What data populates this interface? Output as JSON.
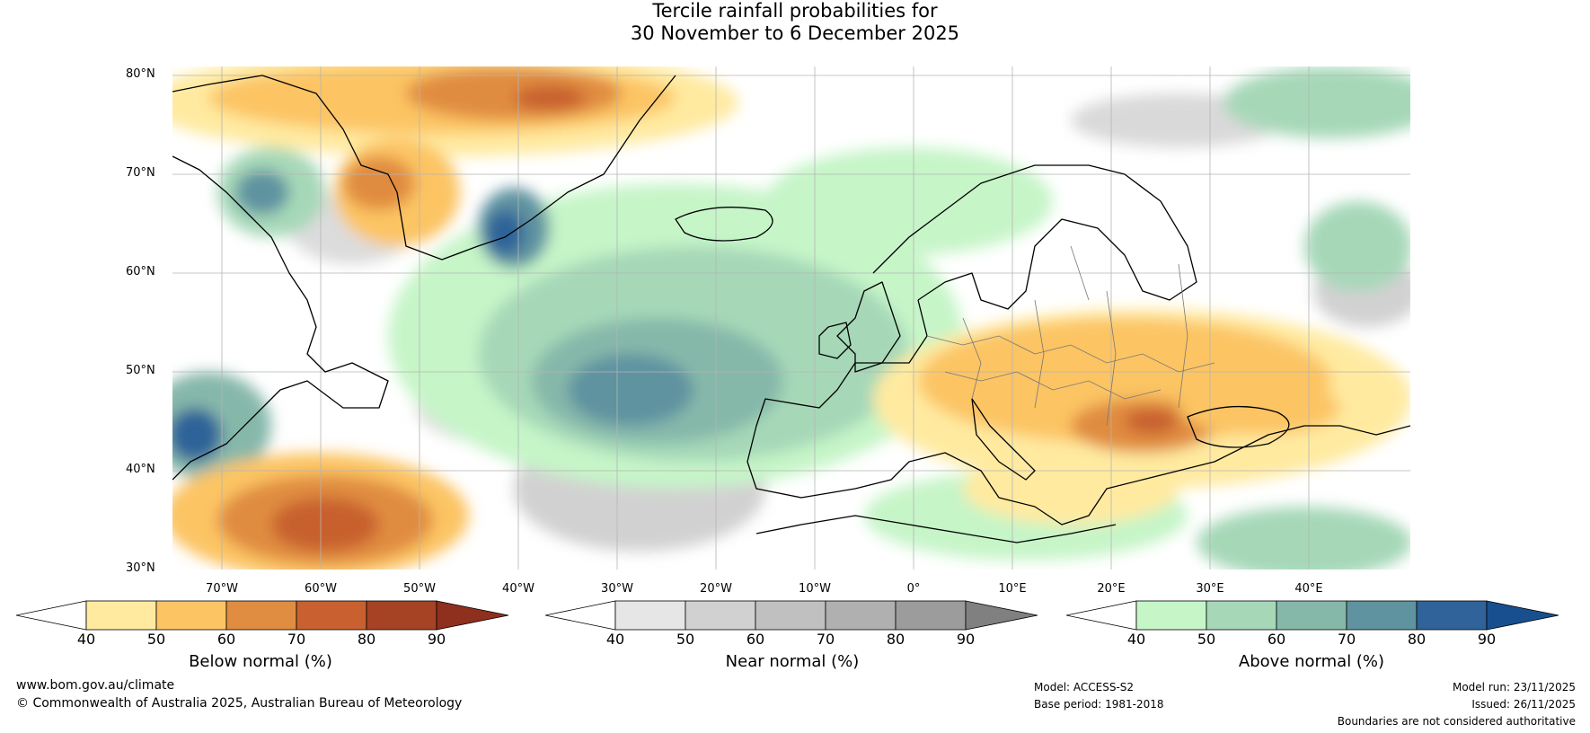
{
  "title": {
    "line1": "Tercile rainfall probabilities for",
    "line2": "30 November to 6 December 2025"
  },
  "map": {
    "lat_labels": [
      "80°N",
      "70°N",
      "60°N",
      "50°N",
      "40°N",
      "30°N"
    ],
    "lon_labels": [
      "70°W",
      "60°W",
      "50°W",
      "40°W",
      "30°W",
      "20°W",
      "10°W",
      "0°",
      "10°E",
      "20°E",
      "30°E",
      "40°E"
    ],
    "extent": {
      "lon_min": -75,
      "lon_max": 50,
      "lat_min": 30,
      "lat_max": 81
    }
  },
  "colorbars": [
    {
      "label": "Below normal (%)",
      "ticks": [
        "40",
        "50",
        "60",
        "70",
        "80",
        "90"
      ],
      "colors": [
        "#ffffff",
        "#ffeaa0",
        "#fcc463",
        "#e08c41",
        "#c8612f",
        "#a64325",
        "#8f2f1e"
      ]
    },
    {
      "label": "Near normal (%)",
      "ticks": [
        "40",
        "50",
        "60",
        "70",
        "80",
        "90"
      ],
      "colors": [
        "#ffffff",
        "#e6e6e6",
        "#d1d1d1",
        "#c0c0c0",
        "#b0b0b0",
        "#9c9c9c",
        "#808080"
      ]
    },
    {
      "label": "Above normal (%)",
      "ticks": [
        "40",
        "50",
        "60",
        "70",
        "80",
        "90"
      ],
      "colors": [
        "#ffffff",
        "#c6f5c8",
        "#a6d8b8",
        "#86b8aa",
        "#5f93a0",
        "#2f6399",
        "#184f8e"
      ]
    }
  ],
  "footer": {
    "website": "www.bom.gov.au/climate",
    "copyright": "© Commonwealth of Australia 2025, Australian Bureau of Meteorology",
    "model": "Model: ACCESS-S2",
    "base_period": "Base period: 1981-2018",
    "model_run": "Model run: 23/11/2025",
    "issued": "Issued: 26/11/2025",
    "disclaimer": "Boundaries are not considered authoritative"
  }
}
